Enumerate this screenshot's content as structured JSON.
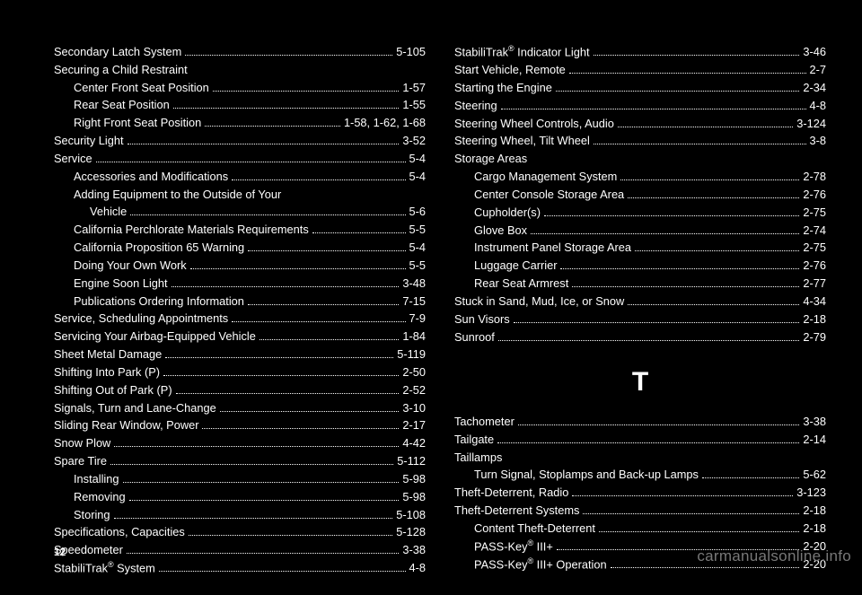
{
  "pageNumber": "12",
  "watermark": "carmanualsonline.info",
  "sectionLetter": "T",
  "left": [
    {
      "label": "Secondary Latch System",
      "page": "5-105",
      "indent": false
    },
    {
      "label": "Securing a Child Restraint",
      "page": "",
      "indent": false,
      "noleader": true
    },
    {
      "label": "Center Front Seat Position",
      "page": "1-57",
      "indent": true
    },
    {
      "label": "Rear Seat Position",
      "page": "1-55",
      "indent": true
    },
    {
      "label": "Right Front Seat Position",
      "page": "1-58, 1-62, 1-68",
      "indent": true
    },
    {
      "label": "Security Light",
      "page": "3-52",
      "indent": false
    },
    {
      "label": "Service",
      "page": "5-4",
      "indent": false
    },
    {
      "label": "Accessories and Modifications",
      "page": "5-4",
      "indent": true
    },
    {
      "label": "Adding Equipment to the Outside of Your",
      "page": "",
      "indent": true,
      "noleader": true
    },
    {
      "label": "Vehicle",
      "page": "5-6",
      "indent": true,
      "extraIndent": true
    },
    {
      "label": "California Perchlorate Materials Requirements",
      "page": "5-5",
      "indent": true
    },
    {
      "label": "California Proposition 65 Warning",
      "page": "5-4",
      "indent": true
    },
    {
      "label": "Doing Your Own Work",
      "page": "5-5",
      "indent": true
    },
    {
      "label": "Engine Soon Light",
      "page": "3-48",
      "indent": true
    },
    {
      "label": "Publications Ordering Information",
      "page": "7-15",
      "indent": true
    },
    {
      "label": "Service, Scheduling Appointments",
      "page": "7-9",
      "indent": false
    },
    {
      "label": "Servicing Your Airbag-Equipped Vehicle",
      "page": "1-84",
      "indent": false
    },
    {
      "label": "Sheet Metal Damage",
      "page": "5-119",
      "indent": false
    },
    {
      "label": "Shifting Into Park (P)",
      "page": "2-50",
      "indent": false
    },
    {
      "label": "Shifting Out of Park (P)",
      "page": "2-52",
      "indent": false
    },
    {
      "label": "Signals, Turn and Lane-Change",
      "page": "3-10",
      "indent": false
    },
    {
      "label": "Sliding Rear Window, Power",
      "page": "2-17",
      "indent": false
    },
    {
      "label": "Snow Plow",
      "page": "4-42",
      "indent": false
    },
    {
      "label": "Spare Tire",
      "page": "5-112",
      "indent": false
    },
    {
      "label": "Installing",
      "page": "5-98",
      "indent": true
    },
    {
      "label": "Removing",
      "page": "5-98",
      "indent": true
    },
    {
      "label": "Storing",
      "page": "5-108",
      "indent": true
    },
    {
      "label": "Specifications, Capacities",
      "page": "5-128",
      "indent": false
    },
    {
      "label": "Speedometer",
      "page": "3-38",
      "indent": false
    },
    {
      "label": "StabiliTrak<sup>®</sup> System",
      "page": "4-8",
      "indent": false,
      "html": true
    }
  ],
  "rightTop": [
    {
      "label": "StabiliTrak<sup>®</sup> Indicator Light",
      "page": "3-46",
      "indent": false,
      "html": true
    },
    {
      "label": "Start Vehicle, Remote",
      "page": "2-7",
      "indent": false
    },
    {
      "label": "Starting the Engine",
      "page": "2-34",
      "indent": false
    },
    {
      "label": "Steering",
      "page": "4-8",
      "indent": false
    },
    {
      "label": "Steering Wheel Controls, Audio",
      "page": "3-124",
      "indent": false
    },
    {
      "label": "Steering Wheel, Tilt Wheel",
      "page": "3-8",
      "indent": false
    },
    {
      "label": "Storage Areas",
      "page": "",
      "indent": false,
      "noleader": true
    },
    {
      "label": "Cargo Management System",
      "page": "2-78",
      "indent": true
    },
    {
      "label": "Center Console Storage Area",
      "page": "2-76",
      "indent": true
    },
    {
      "label": "Cupholder(s)",
      "page": "2-75",
      "indent": true
    },
    {
      "label": "Glove Box",
      "page": "2-74",
      "indent": true
    },
    {
      "label": "Instrument Panel Storage Area",
      "page": "2-75",
      "indent": true
    },
    {
      "label": "Luggage Carrier",
      "page": "2-76",
      "indent": true
    },
    {
      "label": "Rear Seat Armrest",
      "page": "2-77",
      "indent": true
    },
    {
      "label": "Stuck in Sand, Mud, Ice, or Snow",
      "page": "4-34",
      "indent": false
    },
    {
      "label": "Sun Visors",
      "page": "2-18",
      "indent": false
    },
    {
      "label": "Sunroof",
      "page": "2-79",
      "indent": false
    }
  ],
  "rightBottom": [
    {
      "label": "Tachometer",
      "page": "3-38",
      "indent": false
    },
    {
      "label": "Tailgate",
      "page": "2-14",
      "indent": false
    },
    {
      "label": "Taillamps",
      "page": "",
      "indent": false,
      "noleader": true
    },
    {
      "label": "Turn Signal, Stoplamps and Back-up Lamps",
      "page": "5-62",
      "indent": true
    },
    {
      "label": "Theft-Deterrent, Radio",
      "page": "3-123",
      "indent": false
    },
    {
      "label": "Theft-Deterrent Systems",
      "page": "2-18",
      "indent": false
    },
    {
      "label": "Content Theft-Deterrent",
      "page": "2-18",
      "indent": true
    },
    {
      "label": "PASS-Key<sup>®</sup> III+",
      "page": "2-20",
      "indent": true,
      "html": true
    },
    {
      "label": "PASS-Key<sup>®</sup> III+ Operation",
      "page": "2-20",
      "indent": true,
      "html": true
    }
  ]
}
